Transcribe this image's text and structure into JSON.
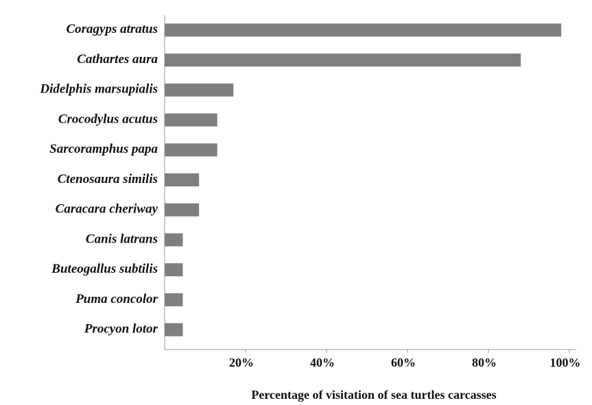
{
  "chart_data": {
    "type": "bar",
    "orientation": "horizontal",
    "x_label": "Percentage of visitation of sea turtles carcasses",
    "categories": [
      "Coragyps atratus",
      "Cathartes aura",
      "Didelphis marsupialis",
      "Crocodylus acutus",
      "Sarcoramphus papa",
      "Ctenosaura similis",
      "Caracara cheriway",
      "Canis latrans",
      "Buteogallus subtilis",
      "Puma concolor",
      "Procyon lotor"
    ],
    "values": [
      98,
      88,
      17,
      13,
      13,
      8.5,
      8.5,
      4.5,
      4.5,
      4.5,
      4.5
    ],
    "color": "#7f7f7f",
    "xlim": [
      0,
      100
    ],
    "xticks": [
      {
        "value": 20,
        "label": "20%"
      },
      {
        "value": 40,
        "label": "40%"
      },
      {
        "value": 60,
        "label": "60%"
      },
      {
        "value": 80,
        "label": "80%"
      },
      {
        "value": 100,
        "label": "100%"
      }
    ],
    "grid": false
  }
}
